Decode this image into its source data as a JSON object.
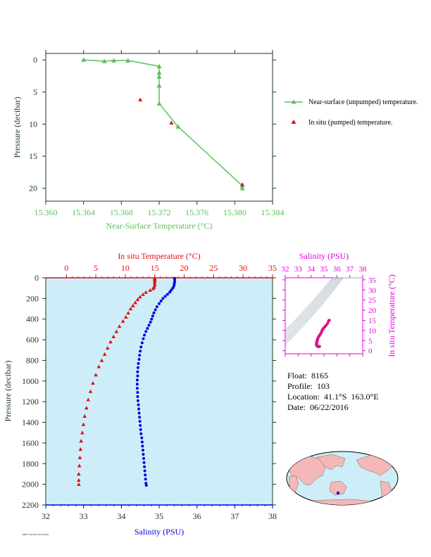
{
  "colors": {
    "green": "#5dbf5d",
    "red": "#e01010",
    "blue": "#0000e0",
    "magenta": "#e000e0",
    "axis_dark": "#1a3a1a",
    "panel_fill": "#cdeef8"
  },
  "info": {
    "float": "Float:  8165",
    "profile": "Profile:  103",
    "location": "Location:  41.1°S  163.0°E",
    "date": "Date:  06/22/2016"
  },
  "stamp": "PMEL 2016 Argo Float Profile",
  "chart_data": [
    {
      "type": "line",
      "id": "near-surface",
      "xlabel": "Near-Surface Temperature (°C)",
      "ylabel": "Pressure (decibar)",
      "xlim": [
        15.36,
        15.384
      ],
      "ylim": [
        22,
        -1
      ],
      "xticks": [
        "15.360",
        "15.364",
        "15.368",
        "15.372",
        "15.376",
        "15.380",
        "15.384"
      ],
      "yticks": [
        "0",
        "5",
        "10",
        "15",
        "20"
      ],
      "series": [
        {
          "name": "Near-surface (unpumped) temperature.",
          "color": "#5dbf5d",
          "marker": "triangle",
          "points": [
            [
              15.364,
              0.0
            ],
            [
              15.3662,
              0.2
            ],
            [
              15.3672,
              0.1
            ],
            [
              15.3687,
              0.1
            ],
            [
              15.372,
              1.0
            ],
            [
              15.372,
              2.0
            ],
            [
              15.372,
              2.6
            ],
            [
              15.372,
              4.0
            ],
            [
              15.372,
              6.8
            ],
            [
              15.374,
              10.4
            ],
            [
              15.3808,
              19.6
            ],
            [
              15.3808,
              20.0
            ]
          ]
        },
        {
          "name": "In situ (pumped) temperature.",
          "color": "#e01010",
          "marker": "triangle",
          "points": [
            [
              15.37,
              6.2
            ],
            [
              15.3733,
              9.8
            ],
            [
              15.3808,
              19.4
            ]
          ]
        }
      ]
    },
    {
      "type": "scatter",
      "id": "profile",
      "ylabel": "Pressure (decibar)",
      "ylim": [
        2200,
        0
      ],
      "yticks": [
        "0",
        "200",
        "400",
        "600",
        "800",
        "1000",
        "1200",
        "1400",
        "1600",
        "1800",
        "2000",
        "2200"
      ],
      "temperature_axis": {
        "label": "In situ Temperature (°C)",
        "lim": [
          -3.5,
          35
        ],
        "ticks": [
          "0",
          "5",
          "10",
          "15",
          "20",
          "25",
          "30",
          "35"
        ]
      },
      "salinity_axis": {
        "label": "Salinity (PSU)",
        "lim": [
          32,
          38
        ],
        "ticks": [
          "32",
          "33",
          "34",
          "35",
          "36",
          "37",
          "38"
        ]
      },
      "temperature": [
        [
          15.0,
          5
        ],
        [
          15.0,
          15
        ],
        [
          15.0,
          30
        ],
        [
          15.0,
          50
        ],
        [
          15.0,
          70
        ],
        [
          14.9,
          90
        ],
        [
          14.7,
          105
        ],
        [
          14.2,
          120
        ],
        [
          13.5,
          140
        ],
        [
          13.0,
          160
        ],
        [
          12.5,
          185
        ],
        [
          12.1,
          210
        ],
        [
          11.7,
          240
        ],
        [
          11.3,
          270
        ],
        [
          10.9,
          300
        ],
        [
          10.5,
          340
        ],
        [
          10.1,
          380
        ],
        [
          9.6,
          420
        ],
        [
          9.0,
          470
        ],
        [
          8.5,
          520
        ],
        [
          8.0,
          570
        ],
        [
          7.5,
          620
        ],
        [
          7.0,
          680
        ],
        [
          6.5,
          740
        ],
        [
          6.0,
          800
        ],
        [
          5.5,
          860
        ],
        [
          5.0,
          940
        ],
        [
          4.5,
          1020
        ],
        [
          4.1,
          1100
        ],
        [
          3.7,
          1180
        ],
        [
          3.4,
          1260
        ],
        [
          3.1,
          1340
        ],
        [
          2.9,
          1420
        ],
        [
          2.7,
          1500
        ],
        [
          2.5,
          1580
        ],
        [
          2.4,
          1660
        ],
        [
          2.3,
          1740
        ],
        [
          2.2,
          1820
        ],
        [
          2.1,
          1900
        ],
        [
          2.1,
          1960
        ],
        [
          2.1,
          2000
        ]
      ],
      "salinity": [
        [
          35.41,
          5
        ],
        [
          35.41,
          20
        ],
        [
          35.41,
          40
        ],
        [
          35.4,
          60
        ],
        [
          35.39,
          80
        ],
        [
          35.36,
          100
        ],
        [
          35.32,
          120
        ],
        [
          35.28,
          140
        ],
        [
          35.22,
          160
        ],
        [
          35.16,
          180
        ],
        [
          35.1,
          200
        ],
        [
          35.05,
          225
        ],
        [
          35.0,
          250
        ],
        [
          34.94,
          280
        ],
        [
          34.9,
          310
        ],
        [
          34.86,
          340
        ],
        [
          34.83,
          370
        ],
        [
          34.8,
          400
        ],
        [
          34.77,
          430
        ],
        [
          34.73,
          460
        ],
        [
          34.69,
          490
        ],
        [
          34.65,
          520
        ],
        [
          34.61,
          555
        ],
        [
          34.58,
          590
        ],
        [
          34.55,
          630
        ],
        [
          34.52,
          670
        ],
        [
          34.5,
          710
        ],
        [
          34.48,
          750
        ],
        [
          34.47,
          790
        ],
        [
          34.45,
          830
        ],
        [
          34.44,
          870
        ],
        [
          34.43,
          910
        ],
        [
          34.43,
          950
        ],
        [
          34.42,
          990
        ],
        [
          34.42,
          1030
        ],
        [
          34.42,
          1070
        ],
        [
          34.43,
          1110
        ],
        [
          34.43,
          1150
        ],
        [
          34.44,
          1190
        ],
        [
          34.45,
          1230
        ],
        [
          34.46,
          1270
        ],
        [
          34.47,
          1310
        ],
        [
          34.48,
          1350
        ],
        [
          34.49,
          1390
        ],
        [
          34.5,
          1430
        ],
        [
          34.51,
          1470
        ],
        [
          34.52,
          1510
        ],
        [
          34.54,
          1550
        ],
        [
          34.55,
          1590
        ],
        [
          34.56,
          1630
        ],
        [
          34.57,
          1670
        ],
        [
          34.58,
          1710
        ],
        [
          34.59,
          1750
        ],
        [
          34.6,
          1790
        ],
        [
          34.61,
          1830
        ],
        [
          34.62,
          1870
        ],
        [
          34.63,
          1910
        ],
        [
          34.64,
          1950
        ],
        [
          34.65,
          1990
        ],
        [
          34.66,
          2010
        ]
      ]
    },
    {
      "type": "scatter",
      "id": "ts-diagram",
      "xlabel": "Salinity (PSU)",
      "ylabel": "In situ Temperature (°C)",
      "xlim": [
        32,
        38
      ],
      "ylim": [
        -1.5,
        36
      ],
      "xticks": [
        "32",
        "33",
        "34",
        "35",
        "36",
        "37",
        "38"
      ],
      "yticks": [
        "0",
        "5",
        "10",
        "15",
        "20",
        "25",
        "30",
        "35"
      ],
      "color": "#e0108a",
      "points": [
        [
          35.41,
          15.0
        ],
        [
          35.36,
          14.7
        ],
        [
          35.28,
          13.5
        ],
        [
          35.16,
          12.5
        ],
        [
          35.05,
          11.7
        ],
        [
          34.94,
          10.9
        ],
        [
          34.86,
          10.1
        ],
        [
          34.8,
          9.0
        ],
        [
          34.73,
          8.3
        ],
        [
          34.65,
          7.5
        ],
        [
          34.58,
          6.8
        ],
        [
          34.52,
          6.0
        ],
        [
          34.48,
          5.2
        ],
        [
          34.45,
          4.5
        ],
        [
          34.43,
          3.8
        ],
        [
          34.42,
          3.2
        ],
        [
          34.43,
          2.8
        ],
        [
          34.45,
          2.5
        ],
        [
          34.48,
          2.3
        ],
        [
          34.51,
          2.2
        ],
        [
          34.55,
          2.1
        ],
        [
          34.6,
          2.1
        ],
        [
          34.65,
          2.1
        ]
      ]
    }
  ]
}
